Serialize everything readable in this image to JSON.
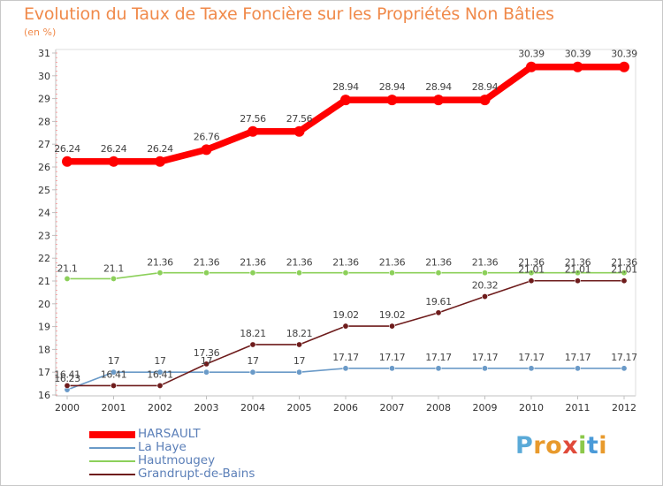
{
  "chart_data": {
    "type": "line",
    "title": "Evolution du Taux de Taxe Foncière sur les Propriétés Non Bâties",
    "ylabel": "(en %)",
    "x": [
      "2000",
      "2001",
      "2002",
      "2003",
      "2004",
      "2005",
      "2006",
      "2007",
      "2008",
      "2009",
      "2010",
      "2011",
      "2012"
    ],
    "ylim": [
      16,
      31
    ],
    "yticks": [
      "16",
      "17",
      "18",
      "19",
      "20",
      "21",
      "22",
      "23",
      "24",
      "25",
      "26",
      "27",
      "28",
      "29",
      "30",
      "31"
    ],
    "grid": false,
    "legend_position": "bottom-left",
    "series": [
      {
        "name": "HARSAULT",
        "color": "#ff0000",
        "values": [
          26.24,
          26.24,
          26.24,
          26.76,
          27.56,
          27.56,
          28.94,
          28.94,
          28.94,
          28.94,
          30.39,
          30.39,
          30.39
        ],
        "labels": [
          "26.24",
          "26.24",
          "26.24",
          "26.76",
          "27.56",
          "27.56",
          "28.94",
          "28.94",
          "28.94",
          "28.94",
          "30.39",
          "30.39",
          "30.39"
        ]
      },
      {
        "name": "La Haye",
        "color": "#6a9ac8",
        "values": [
          16.23,
          17,
          17,
          17,
          17,
          17,
          17.17,
          17.17,
          17.17,
          17.17,
          17.17,
          17.17,
          17.17
        ],
        "labels": [
          "16.23",
          "17",
          "17",
          "17",
          "17",
          "17",
          "17.17",
          "17.17",
          "17.17",
          "17.17",
          "17.17",
          "17.17",
          "17.17"
        ]
      },
      {
        "name": "Hautmougey",
        "color": "#8cd05a",
        "values": [
          21.1,
          21.1,
          21.36,
          21.36,
          21.36,
          21.36,
          21.36,
          21.36,
          21.36,
          21.36,
          21.36,
          21.36,
          21.36
        ],
        "labels": [
          "21.1",
          "21.1",
          "21.36",
          "21.36",
          "21.36",
          "21.36",
          "21.36",
          "21.36",
          "21.36",
          "21.36",
          "21.36",
          "21.36",
          "21.36"
        ]
      },
      {
        "name": "Grandrupt-de-Bains",
        "color": "#6e1c1c",
        "values": [
          16.41,
          16.41,
          16.41,
          17.36,
          18.21,
          18.21,
          19.02,
          19.02,
          19.61,
          20.32,
          21.01,
          21.01,
          21.01
        ],
        "labels": [
          "16.41",
          "16.41",
          "16.41",
          "17.36",
          "18.21",
          "18.21",
          "19.02",
          "19.02",
          "19.61",
          "20.32",
          "21.01",
          "21.01",
          "21.01"
        ]
      }
    ]
  },
  "logo": {
    "letters": [
      "P",
      "r",
      "o",
      "x",
      "i",
      "t",
      "i"
    ],
    "colors": [
      "#5aaad8",
      "#e89a2c",
      "#e89a2c",
      "#e04a3a",
      "#8cc84a",
      "#4a9ad8",
      "#e89a2c"
    ]
  }
}
